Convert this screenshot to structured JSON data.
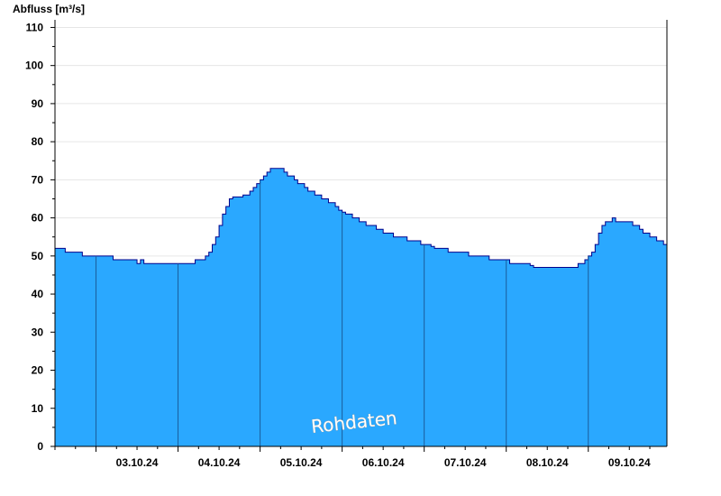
{
  "chart_data": {
    "type": "area",
    "title": "",
    "ylabel": "Abfluss [m³/s]",
    "xlabel": "",
    "ylim": [
      0,
      112
    ],
    "yticks": [
      0,
      10,
      20,
      30,
      40,
      50,
      60,
      70,
      80,
      90,
      100,
      110
    ],
    "xlim": [
      "02.10.24 12:00",
      "09.10.24 23:00"
    ],
    "day_labels": [
      "03.10.24",
      "04.10.24",
      "05.10.24",
      "06.10.24",
      "07.10.24",
      "08.10.24",
      "09.10.24"
    ],
    "day_boundaries": [
      "03.10.24 00:00",
      "04.10.24 00:00",
      "05.10.24 00:00",
      "06.10.24 00:00",
      "07.10.24 00:00",
      "08.10.24 00:00",
      "09.10.24 00:00",
      "10.10.24 00:00"
    ],
    "grid": true,
    "fill_color": "#2aa8ff",
    "line_color": "#00008b",
    "watermark": "Rohdaten",
    "series": [
      {
        "name": "",
        "points": [
          [
            "02.10.24 12:00",
            52
          ],
          [
            "02.10.24 14:00",
            52
          ],
          [
            "02.10.24 15:00",
            51
          ],
          [
            "02.10.24 19:00",
            51
          ],
          [
            "02.10.24 20:00",
            50
          ],
          [
            "02.10.24 23:00",
            50
          ],
          [
            "03.10.24 00:00",
            50
          ],
          [
            "03.10.24 04:00",
            50
          ],
          [
            "03.10.24 05:00",
            49
          ],
          [
            "03.10.24 11:00",
            49
          ],
          [
            "03.10.24 12:00",
            48
          ],
          [
            "03.10.24 13:00",
            49
          ],
          [
            "03.10.24 14:00",
            48
          ],
          [
            "03.10.24 23:00",
            48
          ],
          [
            "04.10.24 00:00",
            48
          ],
          [
            "04.10.24 04:00",
            48
          ],
          [
            "04.10.24 05:00",
            49
          ],
          [
            "04.10.24 07:00",
            49
          ],
          [
            "04.10.24 08:00",
            50
          ],
          [
            "04.10.24 09:00",
            51
          ],
          [
            "04.10.24 10:00",
            53
          ],
          [
            "04.10.24 11:00",
            55
          ],
          [
            "04.10.24 12:00",
            58
          ],
          [
            "04.10.24 13:00",
            61
          ],
          [
            "04.10.24 14:00",
            63
          ],
          [
            "04.10.24 15:00",
            65
          ],
          [
            "04.10.24 16:00",
            65.5
          ],
          [
            "04.10.24 19:00",
            66
          ],
          [
            "04.10.24 21:00",
            67
          ],
          [
            "04.10.24 22:00",
            68
          ],
          [
            "04.10.24 23:00",
            69
          ],
          [
            "05.10.24 00:00",
            70
          ],
          [
            "05.10.24 01:00",
            71
          ],
          [
            "05.10.24 02:00",
            72
          ],
          [
            "05.10.24 03:00",
            73
          ],
          [
            "05.10.24 07:00",
            72
          ],
          [
            "05.10.24 08:00",
            71
          ],
          [
            "05.10.24 10:00",
            70
          ],
          [
            "05.10.24 11:00",
            69
          ],
          [
            "05.10.24 13:00",
            68
          ],
          [
            "05.10.24 14:00",
            67
          ],
          [
            "05.10.24 16:00",
            66
          ],
          [
            "05.10.24 18:00",
            65
          ],
          [
            "05.10.24 20:00",
            64
          ],
          [
            "05.10.24 22:00",
            63
          ],
          [
            "05.10.24 23:00",
            62
          ],
          [
            "06.10.24 00:00",
            61.5
          ],
          [
            "06.10.24 01:00",
            61
          ],
          [
            "06.10.24 03:00",
            60
          ],
          [
            "06.10.24 05:00",
            59
          ],
          [
            "06.10.24 07:00",
            58
          ],
          [
            "06.10.24 10:00",
            57
          ],
          [
            "06.10.24 12:00",
            56
          ],
          [
            "06.10.24 15:00",
            55
          ],
          [
            "06.10.24 19:00",
            54
          ],
          [
            "06.10.24 23:00",
            53
          ],
          [
            "07.10.24 00:00",
            53
          ],
          [
            "07.10.24 02:00",
            52.5
          ],
          [
            "07.10.24 03:00",
            52
          ],
          [
            "07.10.24 07:00",
            51
          ],
          [
            "07.10.24 13:00",
            50
          ],
          [
            "07.10.24 19:00",
            49
          ],
          [
            "07.10.24 23:00",
            49
          ],
          [
            "08.10.24 00:00",
            49
          ],
          [
            "08.10.24 01:00",
            48
          ],
          [
            "08.10.24 07:00",
            47.5
          ],
          [
            "08.10.24 08:00",
            47
          ],
          [
            "08.10.24 20:00",
            47
          ],
          [
            "08.10.24 21:00",
            48
          ],
          [
            "08.10.24 23:00",
            49
          ],
          [
            "09.10.24 00:00",
            50
          ],
          [
            "09.10.24 01:00",
            51
          ],
          [
            "09.10.24 02:00",
            53
          ],
          [
            "09.10.24 03:00",
            56
          ],
          [
            "09.10.24 04:00",
            58
          ],
          [
            "09.10.24 05:00",
            59
          ],
          [
            "09.10.24 07:00",
            60
          ],
          [
            "09.10.24 08:00",
            59
          ],
          [
            "09.10.24 13:00",
            58
          ],
          [
            "09.10.24 15:00",
            57
          ],
          [
            "09.10.24 16:00",
            56
          ],
          [
            "09.10.24 18:00",
            55
          ],
          [
            "09.10.24 20:00",
            54
          ],
          [
            "09.10.24 22:00",
            53
          ],
          [
            "09.10.24 23:00",
            53
          ]
        ]
      }
    ]
  }
}
